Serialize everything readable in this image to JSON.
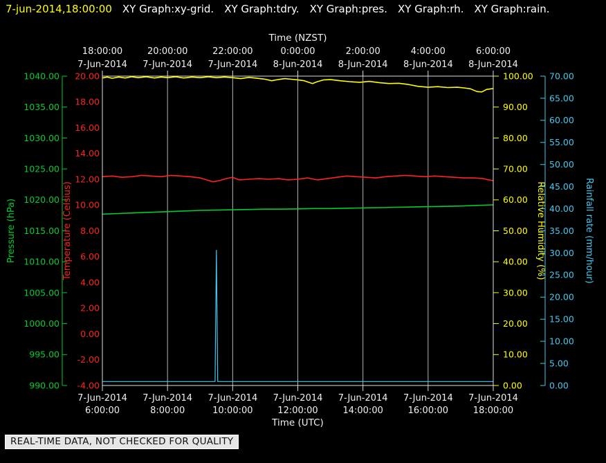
{
  "header": {
    "timestamp": "7-jun-2014,18:00:00",
    "graph_tabs": [
      "XY Graph:xy-grid.",
      "XY Graph:tdry.",
      "XY Graph:pres.",
      "XY Graph:rh.",
      "XY Graph:rain."
    ]
  },
  "footer": {
    "warning": "REAL-TIME DATA, NOT CHECKED FOR QUALITY"
  },
  "colors": {
    "background": "#000000",
    "timestamp": "#ffff00",
    "tab_text": "#ffffff",
    "grid": "#b4b4b4",
    "frame": "#e0e0e0",
    "axis_text": "#f0f0f0",
    "pressure": "#00cc33",
    "temperature": "#ff2222",
    "humidity": "#ffff00",
    "rain": "#44c8f0"
  },
  "chart_data": {
    "type": "line",
    "x_axis_top": {
      "title": "Time (NZST)",
      "ticks": [
        {
          "time": "18:00:00",
          "date": "7-Jun-2014"
        },
        {
          "time": "20:00:00",
          "date": "7-Jun-2014"
        },
        {
          "time": "22:00:00",
          "date": "7-Jun-2014"
        },
        {
          "time": "0:00:00",
          "date": "8-Jun-2014"
        },
        {
          "time": "2:00:00",
          "date": "8-Jun-2014"
        },
        {
          "time": "4:00:00",
          "date": "8-Jun-2014"
        },
        {
          "time": "6:00:00",
          "date": "8-Jun-2014"
        }
      ]
    },
    "x_axis_bottom": {
      "title": "Time (UTC)",
      "ticks": [
        {
          "date": "7-Jun-2014",
          "time": "6:00:00"
        },
        {
          "date": "7-Jun-2014",
          "time": "8:00:00"
        },
        {
          "date": "7-Jun-2014",
          "time": "10:00:00"
        },
        {
          "date": "7-Jun-2014",
          "time": "12:00:00"
        },
        {
          "date": "7-Jun-2014",
          "time": "14:00:00"
        },
        {
          "date": "7-Jun-2014",
          "time": "16:00:00"
        },
        {
          "date": "7-Jun-2014",
          "time": "18:00:00"
        }
      ]
    },
    "x_domain_utc_hours": [
      6,
      18
    ],
    "grid": "vertical-only",
    "y_axes": [
      {
        "id": "pressure",
        "label": "Pressure (hPa)",
        "color": "#00cc33",
        "min": 990,
        "max": 1040,
        "tick_labels": [
          "1040.00",
          "1035.00",
          "1030.00",
          "1025.00",
          "1020.00",
          "1015.00",
          "1010.00",
          "1005.00",
          "1000.00",
          "995.00",
          "990.00"
        ]
      },
      {
        "id": "temperature",
        "label": "Temperature (Celsius)",
        "color": "#ff2222",
        "min": -4,
        "max": 20,
        "tick_labels": [
          "20.00",
          "18.00",
          "16.00",
          "14.00",
          "12.00",
          "10.00",
          "8.00",
          "6.00",
          "4.00",
          "2.00",
          "0.00",
          "-2.00",
          "-4.00"
        ]
      },
      {
        "id": "humidity",
        "label": "Relative Humidity (%)",
        "color": "#ffff00",
        "min": 0,
        "max": 100,
        "tick_labels": [
          "100.00",
          "90.00",
          "80.00",
          "70.00",
          "60.00",
          "50.00",
          "40.00",
          "30.00",
          "20.00",
          "10.00",
          "0.00"
        ]
      },
      {
        "id": "rain",
        "label": "Rainfall rate (mm/hour)",
        "color": "#44c8f0",
        "min": 0,
        "max": 70,
        "tick_labels": [
          "70.00",
          "65.00",
          "60.00",
          "55.00",
          "50.00",
          "45.00",
          "40.00",
          "35.00",
          "30.00",
          "25.00",
          "20.00",
          "15.00",
          "10.00",
          "5.00",
          "0.00"
        ]
      }
    ],
    "series": [
      {
        "name": "rh",
        "axis": "humidity",
        "color": "#ffff00",
        "width": 1.6,
        "points": [
          [
            6.0,
            99.4
          ],
          [
            6.15,
            99.7
          ],
          [
            6.3,
            99.3
          ],
          [
            6.5,
            99.7
          ],
          [
            6.7,
            99.4
          ],
          [
            6.9,
            99.8
          ],
          [
            7.1,
            99.5
          ],
          [
            7.35,
            99.8
          ],
          [
            7.6,
            99.4
          ],
          [
            7.8,
            99.7
          ],
          [
            8.0,
            99.5
          ],
          [
            8.25,
            99.8
          ],
          [
            8.5,
            99.4
          ],
          [
            8.75,
            99.7
          ],
          [
            9.0,
            99.5
          ],
          [
            9.25,
            99.8
          ],
          [
            9.5,
            99.5
          ],
          [
            9.75,
            99.7
          ],
          [
            10.0,
            99.5
          ],
          [
            10.25,
            99.2
          ],
          [
            10.5,
            99.6
          ],
          [
            10.75,
            99.3
          ],
          [
            11.0,
            99.0
          ],
          [
            11.2,
            98.5
          ],
          [
            11.4,
            98.9
          ],
          [
            11.6,
            99.2
          ],
          [
            11.8,
            99.0
          ],
          [
            12.0,
            98.8
          ],
          [
            12.2,
            98.5
          ],
          [
            12.45,
            97.6
          ],
          [
            12.6,
            98.2
          ],
          [
            12.8,
            98.8
          ],
          [
            13.0,
            98.9
          ],
          [
            13.3,
            98.5
          ],
          [
            13.6,
            98.2
          ],
          [
            13.9,
            98.0
          ],
          [
            14.2,
            98.3
          ],
          [
            14.5,
            97.9
          ],
          [
            14.8,
            97.6
          ],
          [
            15.1,
            97.7
          ],
          [
            15.4,
            97.3
          ],
          [
            15.7,
            96.7
          ],
          [
            16.0,
            96.4
          ],
          [
            16.3,
            96.6
          ],
          [
            16.6,
            96.3
          ],
          [
            16.9,
            96.4
          ],
          [
            17.1,
            96.2
          ],
          [
            17.3,
            95.9
          ],
          [
            17.5,
            95.0
          ],
          [
            17.65,
            94.9
          ],
          [
            17.8,
            95.7
          ],
          [
            18.0,
            96.0
          ]
        ]
      },
      {
        "name": "tdry",
        "axis": "temperature",
        "color": "#ff2222",
        "width": 1.6,
        "points": [
          [
            6.0,
            12.2
          ],
          [
            6.3,
            12.25
          ],
          [
            6.6,
            12.15
          ],
          [
            6.9,
            12.2
          ],
          [
            7.2,
            12.3
          ],
          [
            7.5,
            12.25
          ],
          [
            7.8,
            12.2
          ],
          [
            8.1,
            12.3
          ],
          [
            8.4,
            12.25
          ],
          [
            8.7,
            12.2
          ],
          [
            9.0,
            12.1
          ],
          [
            9.2,
            11.95
          ],
          [
            9.4,
            11.8
          ],
          [
            9.6,
            11.9
          ],
          [
            9.8,
            12.05
          ],
          [
            10.0,
            12.15
          ],
          [
            10.2,
            11.95
          ],
          [
            10.5,
            12.0
          ],
          [
            10.8,
            12.05
          ],
          [
            11.1,
            12.0
          ],
          [
            11.4,
            12.05
          ],
          [
            11.7,
            11.95
          ],
          [
            12.0,
            12.0
          ],
          [
            12.3,
            12.1
          ],
          [
            12.6,
            11.95
          ],
          [
            12.9,
            12.05
          ],
          [
            13.2,
            12.15
          ],
          [
            13.5,
            12.25
          ],
          [
            13.8,
            12.2
          ],
          [
            14.1,
            12.15
          ],
          [
            14.4,
            12.1
          ],
          [
            14.7,
            12.2
          ],
          [
            15.0,
            12.25
          ],
          [
            15.3,
            12.3
          ],
          [
            15.6,
            12.25
          ],
          [
            15.9,
            12.2
          ],
          [
            16.2,
            12.25
          ],
          [
            16.5,
            12.2
          ],
          [
            16.8,
            12.15
          ],
          [
            17.1,
            12.1
          ],
          [
            17.4,
            12.1
          ],
          [
            17.7,
            12.05
          ],
          [
            17.85,
            11.95
          ],
          [
            18.0,
            11.9
          ]
        ]
      },
      {
        "name": "pres",
        "axis": "pressure",
        "color": "#00cc33",
        "width": 1.6,
        "points": [
          [
            6.0,
            1017.7
          ],
          [
            6.5,
            1017.8
          ],
          [
            7.0,
            1017.9
          ],
          [
            7.5,
            1018.0
          ],
          [
            8.0,
            1018.1
          ],
          [
            8.5,
            1018.2
          ],
          [
            9.0,
            1018.3
          ],
          [
            9.5,
            1018.35
          ],
          [
            10.0,
            1018.4
          ],
          [
            10.5,
            1018.45
          ],
          [
            11.0,
            1018.5
          ],
          [
            11.5,
            1018.5
          ],
          [
            12.0,
            1018.55
          ],
          [
            12.5,
            1018.6
          ],
          [
            13.0,
            1018.6
          ],
          [
            13.5,
            1018.65
          ],
          [
            14.0,
            1018.7
          ],
          [
            14.5,
            1018.75
          ],
          [
            15.0,
            1018.8
          ],
          [
            15.5,
            1018.85
          ],
          [
            16.0,
            1018.9
          ],
          [
            16.5,
            1018.95
          ],
          [
            17.0,
            1019.0
          ],
          [
            17.5,
            1019.1
          ],
          [
            18.0,
            1019.2
          ]
        ]
      },
      {
        "name": "rain",
        "axis": "rain",
        "color": "#44c8f0",
        "width": 1.2,
        "points": [
          [
            6.0,
            0.9
          ],
          [
            9.46,
            0.9
          ],
          [
            9.5,
            30.6
          ],
          [
            9.54,
            0.9
          ],
          [
            18.0,
            0.9
          ]
        ]
      }
    ]
  }
}
